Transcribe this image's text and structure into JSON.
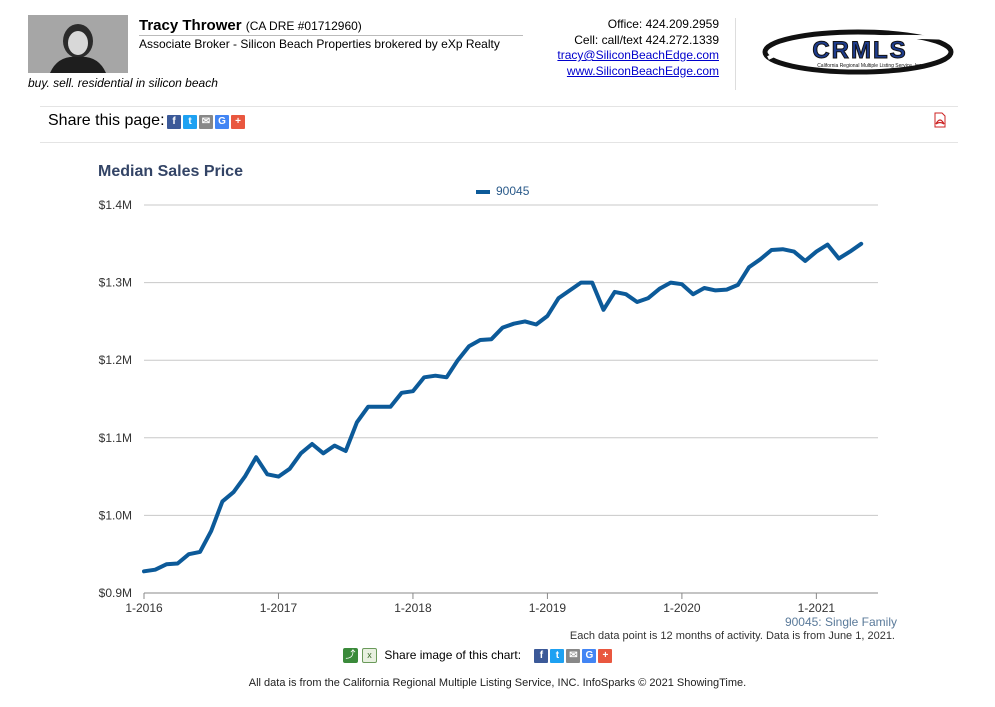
{
  "header": {
    "agent_name": "Tracy Thrower",
    "agent_license": "(CA DRE #01712960)",
    "agent_title": "Associate Broker - Silicon Beach Properties brokered by eXp Realty",
    "tagline": "buy. sell. residential in silicon beach",
    "office": "Office: 424.209.2959",
    "cell": "Cell: call/text 424.272.1339",
    "email": "tracy@SiliconBeachEdge.com",
    "website": "www.SiliconBeachEdge.com",
    "logo_text": "CRMLS",
    "logo_subtext": "California Regional Multiple Listing Service, Inc."
  },
  "share": {
    "label": "Share this page:",
    "icons": [
      "facebook-icon",
      "twitter-icon",
      "email-icon",
      "google-icon",
      "plus-icon"
    ]
  },
  "chart_footer": {
    "series_note": "90045: Single Family",
    "data_note": "Each data point is 12 months of activity. Data is from June 1, 2021.",
    "share_image_label": "Share image of this chart:"
  },
  "disclaimer": "All data is from the California Regional Multiple Listing Service, INC. InfoSparks © 2021 ShowingTime.",
  "colors": {
    "line": "#0c5a99",
    "title": "#334466",
    "grid": "#c8c8c8"
  },
  "chart_data": {
    "type": "line",
    "title": "Median Sales Price",
    "xlabel": "",
    "ylabel": "",
    "y_ticks": [
      "$0.9M",
      "$1.0M",
      "$1.1M",
      "$1.2M",
      "$1.3M",
      "$1.4M"
    ],
    "y_tick_values": [
      900000,
      1000000,
      1100000,
      1200000,
      1300000,
      1400000
    ],
    "ylim": [
      900000,
      1400000
    ],
    "x_ticks": [
      "1-2016",
      "1-2017",
      "1-2018",
      "1-2019",
      "1-2020",
      "1-2021"
    ],
    "x_tick_indices": [
      0,
      12,
      24,
      36,
      48,
      60
    ],
    "legend_position": "top-center",
    "grid": true,
    "series": [
      {
        "name": "90045",
        "x": [
          "1-2016",
          "2-2016",
          "3-2016",
          "4-2016",
          "5-2016",
          "6-2016",
          "7-2016",
          "8-2016",
          "9-2016",
          "10-2016",
          "11-2016",
          "12-2016",
          "1-2017",
          "2-2017",
          "3-2017",
          "4-2017",
          "5-2017",
          "6-2017",
          "7-2017",
          "8-2017",
          "9-2017",
          "10-2017",
          "11-2017",
          "12-2017",
          "1-2018",
          "2-2018",
          "3-2018",
          "4-2018",
          "5-2018",
          "6-2018",
          "7-2018",
          "8-2018",
          "9-2018",
          "10-2018",
          "11-2018",
          "12-2018",
          "1-2019",
          "2-2019",
          "3-2019",
          "4-2019",
          "5-2019",
          "6-2019",
          "7-2019",
          "8-2019",
          "9-2019",
          "10-2019",
          "11-2019",
          "12-2019",
          "1-2020",
          "2-2020",
          "3-2020",
          "4-2020",
          "5-2020",
          "6-2020",
          "7-2020",
          "8-2020",
          "9-2020",
          "10-2020",
          "11-2020",
          "12-2020",
          "1-2021",
          "2-2021",
          "3-2021",
          "4-2021",
          "5-2021"
        ],
        "values": [
          928000,
          930000,
          937000,
          938000,
          950000,
          953000,
          980000,
          1018000,
          1030000,
          1050000,
          1075000,
          1053000,
          1050000,
          1060000,
          1080000,
          1092000,
          1080000,
          1090000,
          1083000,
          1120000,
          1140000,
          1140000,
          1140000,
          1158000,
          1160000,
          1178000,
          1180000,
          1178000,
          1200000,
          1218000,
          1226000,
          1227000,
          1242000,
          1247000,
          1250000,
          1246000,
          1257000,
          1280000,
          1290000,
          1300000,
          1300000,
          1265000,
          1288000,
          1285000,
          1275000,
          1280000,
          1292000,
          1300000,
          1298000,
          1285000,
          1293000,
          1290000,
          1291000,
          1297000,
          1320000,
          1330000,
          1342000,
          1343000,
          1340000,
          1328000,
          1340000,
          1349000,
          1331000,
          1340000,
          1350000
        ]
      }
    ]
  }
}
